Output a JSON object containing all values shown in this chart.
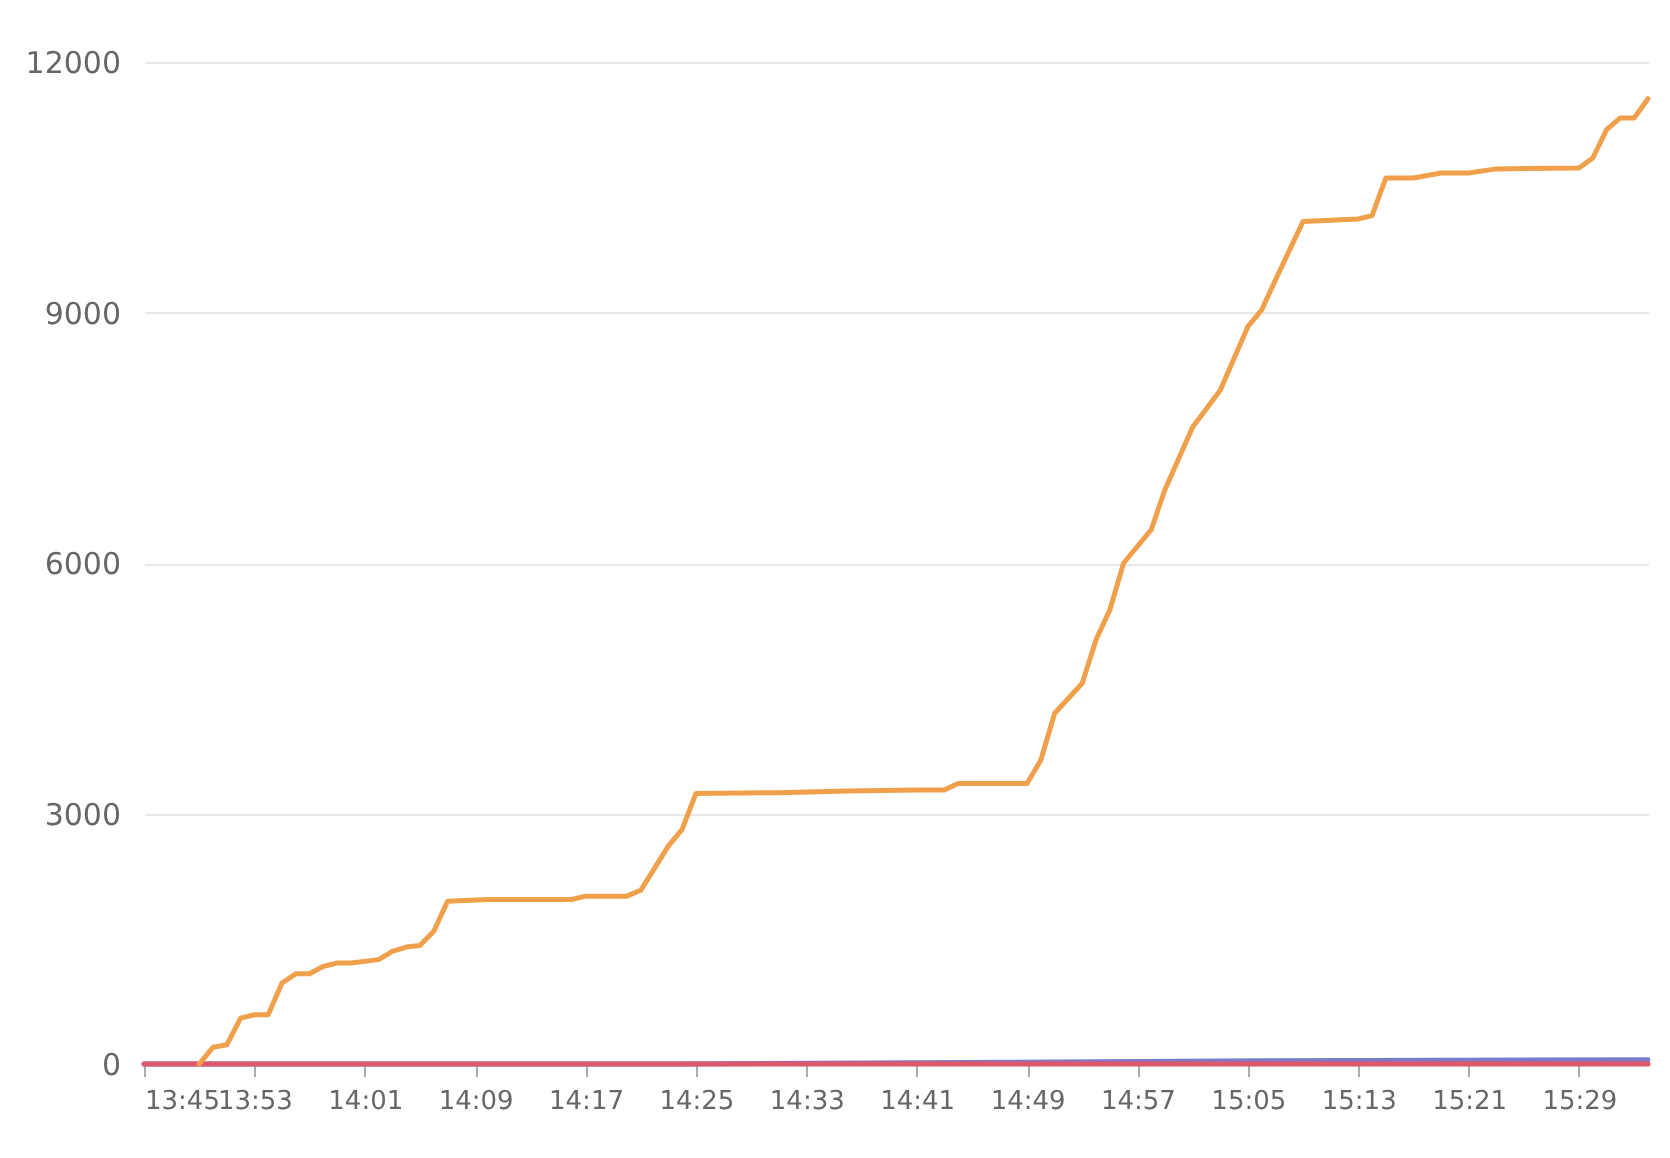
{
  "chart_data": {
    "type": "line",
    "xlim": [
      13.75,
      15.5667
    ],
    "ylim": [
      0,
      12000
    ],
    "xticks": [
      {
        "value": 13.75,
        "label": "13:45"
      },
      {
        "value": 13.8833,
        "label": "13:53"
      },
      {
        "value": 14.0167,
        "label": "14:01"
      },
      {
        "value": 14.15,
        "label": "14:09"
      },
      {
        "value": 14.2833,
        "label": "14:17"
      },
      {
        "value": 14.4167,
        "label": "14:25"
      },
      {
        "value": 14.55,
        "label": "14:33"
      },
      {
        "value": 14.6833,
        "label": "14:41"
      },
      {
        "value": 14.8167,
        "label": "14:49"
      },
      {
        "value": 14.95,
        "label": "14:57"
      },
      {
        "value": 15.0833,
        "label": "15:05"
      },
      {
        "value": 15.2167,
        "label": "15:13"
      },
      {
        "value": 15.35,
        "label": "15:21"
      },
      {
        "value": 15.4833,
        "label": "15:29"
      }
    ],
    "yticks": [
      0,
      3000,
      6000,
      9000,
      12000
    ],
    "grid": "y",
    "marker": "none",
    "line_style": "solid",
    "series": [
      {
        "color": "#7b7bc8",
        "x": [
          13.75,
          14.4,
          14.8,
          15.1,
          15.5667
        ],
        "values": [
          0,
          0,
          20,
          40,
          50
        ]
      },
      {
        "color": "#e0566a",
        "x": [
          13.75,
          15.5667
        ],
        "values": [
          0,
          0
        ]
      },
      {
        "color": "#f0a04b",
        "x": [
          13.8167,
          13.8333,
          13.85,
          13.8667,
          13.8833,
          13.9,
          13.9167,
          13.9333,
          13.95,
          13.9667,
          13.9833,
          14.0,
          14.0333,
          14.05,
          14.0667,
          14.0833,
          14.1,
          14.1167,
          14.1667,
          14.2667,
          14.2833,
          14.3333,
          14.35,
          14.3833,
          14.4,
          14.4167,
          14.5167,
          14.6,
          14.6833,
          14.7167,
          14.7333,
          14.8167,
          14.8333,
          14.85,
          14.8833,
          14.9,
          14.9167,
          14.9333,
          14.9667,
          14.9833,
          15.0167,
          15.05,
          15.0833,
          15.1,
          15.1167,
          15.15,
          15.2167,
          15.2333,
          15.25,
          15.2833,
          15.3167,
          15.35,
          15.3833,
          15.4833,
          15.5,
          15.5167,
          15.5333,
          15.55,
          15.5667
        ],
        "values": [
          0,
          200,
          230,
          550,
          590,
          590,
          970,
          1080,
          1080,
          1170,
          1210,
          1210,
          1250,
          1350,
          1400,
          1420,
          1590,
          1950,
          1970,
          1970,
          2010,
          2010,
          2080,
          2610,
          2810,
          3240,
          3250,
          3270,
          3280,
          3280,
          3360,
          3360,
          3640,
          4200,
          4560,
          5080,
          5440,
          6000,
          6400,
          6880,
          7630,
          8070,
          8830,
          9030,
          9390,
          10090,
          10120,
          10160,
          10610,
          10610,
          10670,
          10670,
          10720,
          10730,
          10850,
          11190,
          11330,
          11330,
          11560
        ]
      }
    ]
  }
}
